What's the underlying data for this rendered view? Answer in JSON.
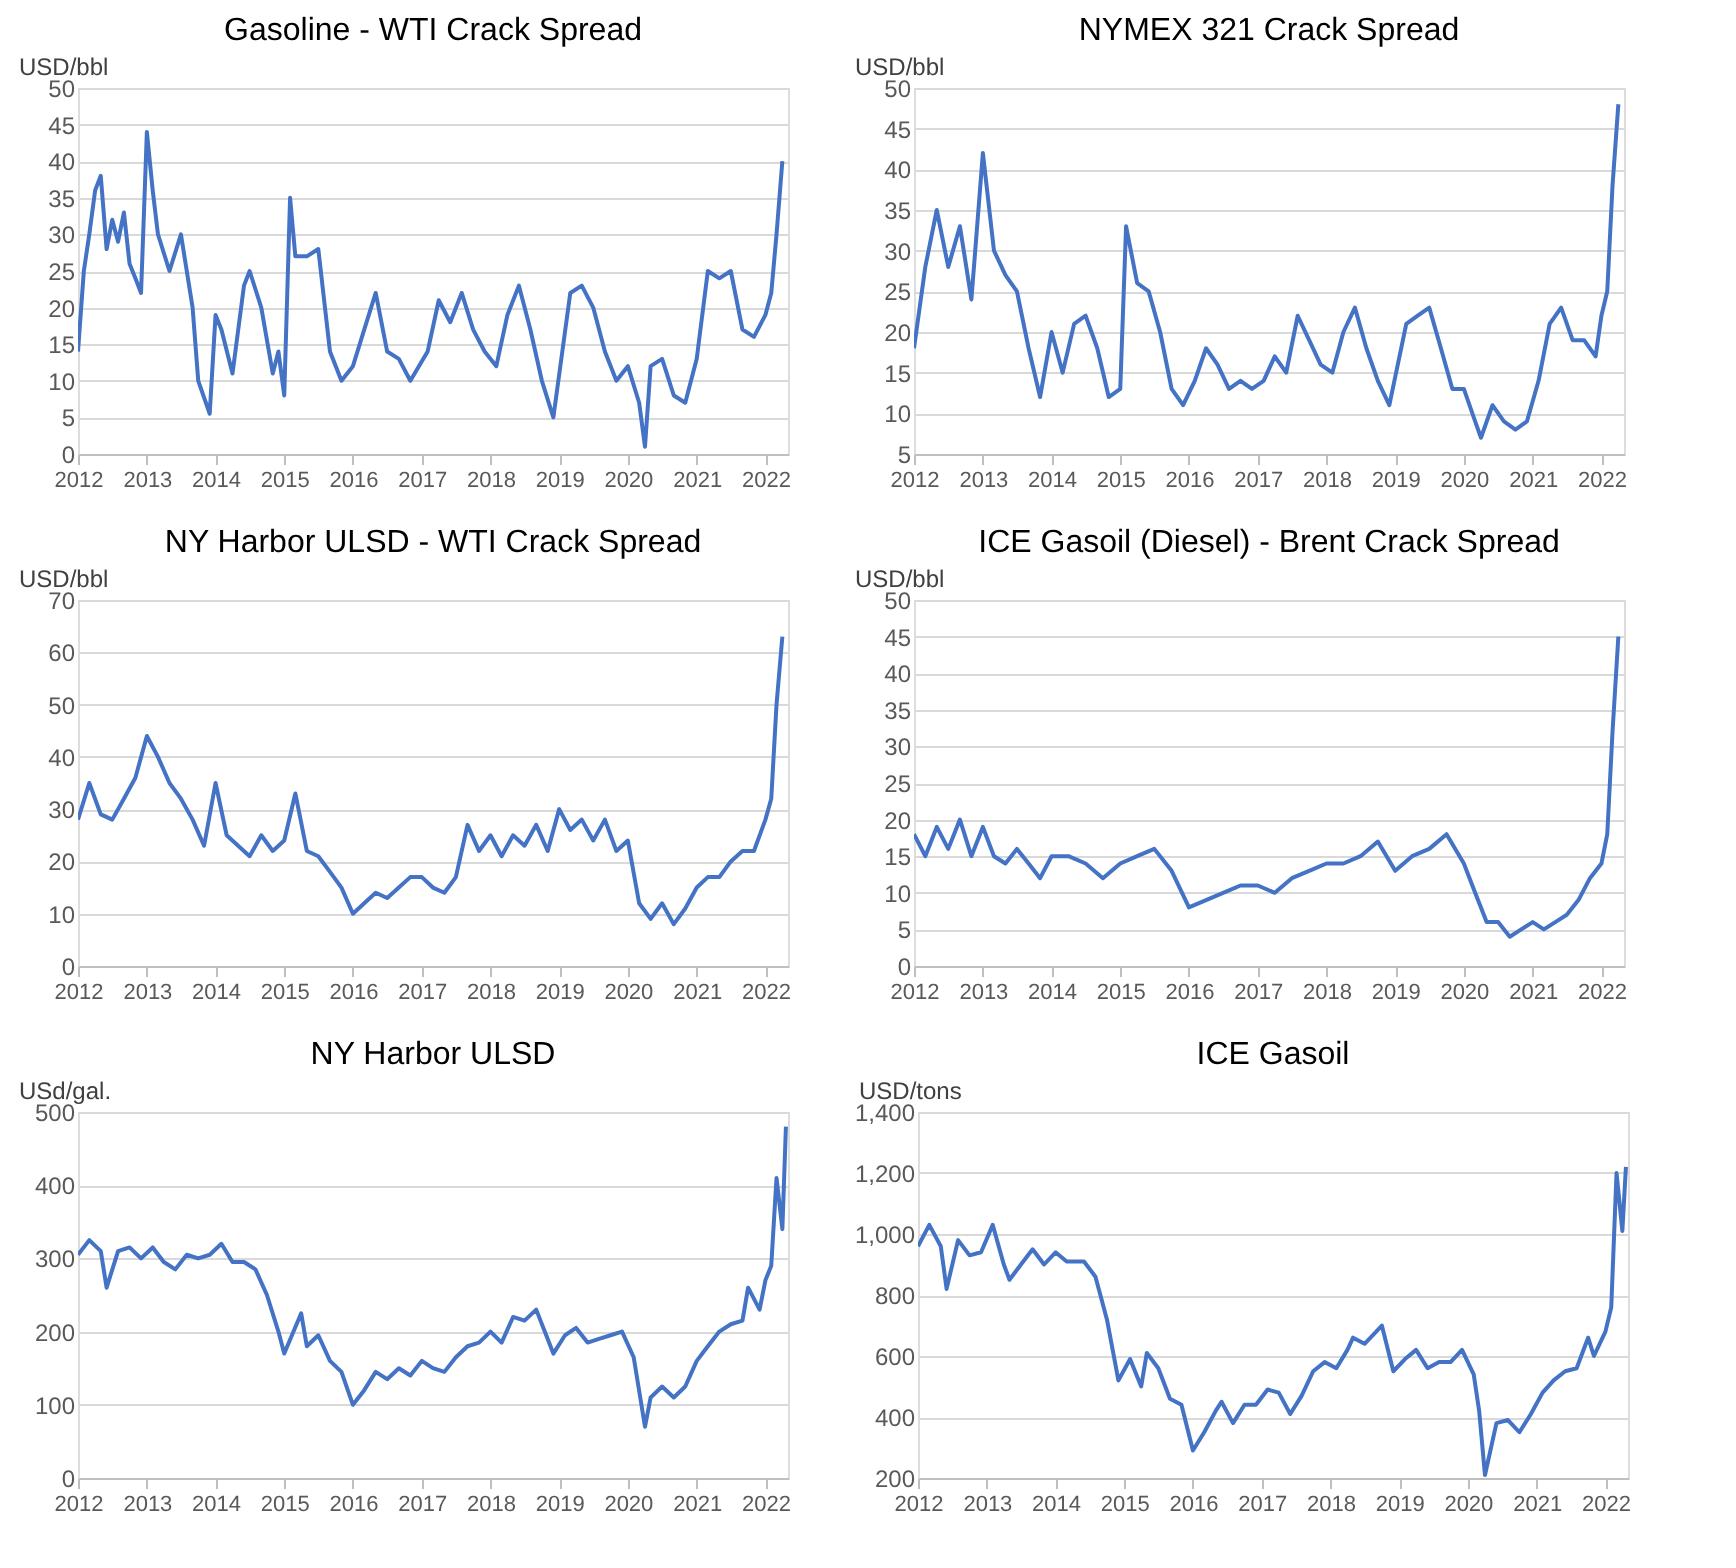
{
  "chart_data": [
    {
      "type": "line",
      "title": "Gasoline - WTI Crack Spread",
      "ylabel": "USD/bbl",
      "grid": "y",
      "xlim": [
        "2012-01-01",
        "2022-05-01"
      ],
      "xticks": [
        "2012",
        "2013",
        "2014",
        "2015",
        "2016",
        "2017",
        "2018",
        "2019",
        "2020",
        "2021",
        "2022"
      ],
      "ylim": [
        0,
        50
      ],
      "yticks": [
        0,
        5,
        10,
        15,
        20,
        25,
        30,
        35,
        40,
        45,
        50
      ],
      "x": [
        "2012-01",
        "2012-02",
        "2012-03",
        "2012-04",
        "2012-05",
        "2012-06",
        "2012-07",
        "2012-08",
        "2012-09",
        "2012-10",
        "2012-11",
        "2012-12",
        "2013-01",
        "2013-02",
        "2013-03",
        "2013-05",
        "2013-07",
        "2013-09",
        "2013-10",
        "2013-12",
        "2014-01",
        "2014-02",
        "2014-04",
        "2014-06",
        "2014-07",
        "2014-09",
        "2014-11",
        "2014-12",
        "2015-01",
        "2015-02",
        "2015-03",
        "2015-05",
        "2015-07",
        "2015-09",
        "2015-11",
        "2016-01",
        "2016-03",
        "2016-05",
        "2016-07",
        "2016-09",
        "2016-11",
        "2017-02",
        "2017-04",
        "2017-06",
        "2017-08",
        "2017-10",
        "2017-12",
        "2018-02",
        "2018-04",
        "2018-06",
        "2018-08",
        "2018-10",
        "2018-12",
        "2019-03",
        "2019-05",
        "2019-07",
        "2019-09",
        "2019-11",
        "2020-01",
        "2020-03",
        "2020-04",
        "2020-05",
        "2020-07",
        "2020-09",
        "2020-11",
        "2021-01",
        "2021-03",
        "2021-05",
        "2021-07",
        "2021-09",
        "2021-11",
        "2022-01",
        "2022-02",
        "2022-03",
        "2022-04"
      ],
      "series": [
        {
          "color": "#4472c4",
          "values": [
            14,
            25,
            30,
            36,
            38,
            28,
            32,
            29,
            33,
            26,
            24,
            22,
            44,
            36,
            30,
            25,
            30,
            20,
            10,
            5.5,
            19,
            17,
            11,
            23,
            25,
            20,
            11,
            14,
            8,
            35,
            27,
            27,
            28,
            14,
            10,
            12,
            17,
            22,
            14,
            13,
            10,
            14,
            21,
            18,
            22,
            17,
            14,
            12,
            19,
            23,
            17,
            10,
            5,
            22,
            23,
            20,
            14,
            10,
            12,
            7,
            1,
            12,
            13,
            8,
            7,
            13,
            25,
            24,
            25,
            17,
            16,
            19,
            22,
            30,
            40
          ]
        }
      ]
    },
    {
      "type": "line",
      "title": "NYMEX 321 Crack Spread",
      "ylabel": "USD/bbl",
      "grid": "y",
      "xlim": [
        "2012-01-01",
        "2022-05-01"
      ],
      "xticks": [
        "2012",
        "2013",
        "2014",
        "2015",
        "2016",
        "2017",
        "2018",
        "2019",
        "2020",
        "2021",
        "2022"
      ],
      "ylim": [
        5,
        50
      ],
      "yticks": [
        5,
        10,
        15,
        20,
        25,
        30,
        35,
        40,
        45,
        50
      ],
      "x": [
        "2012-01",
        "2012-03",
        "2012-05",
        "2012-07",
        "2012-09",
        "2012-11",
        "2013-01",
        "2013-03",
        "2013-05",
        "2013-07",
        "2013-09",
        "2013-11",
        "2014-01",
        "2014-03",
        "2014-05",
        "2014-07",
        "2014-09",
        "2014-11",
        "2015-01",
        "2015-02",
        "2015-04",
        "2015-06",
        "2015-08",
        "2015-10",
        "2015-12",
        "2016-02",
        "2016-04",
        "2016-06",
        "2016-08",
        "2016-10",
        "2016-12",
        "2017-02",
        "2017-04",
        "2017-06",
        "2017-08",
        "2017-10",
        "2017-12",
        "2018-02",
        "2018-04",
        "2018-06",
        "2018-08",
        "2018-10",
        "2018-12",
        "2019-03",
        "2019-05",
        "2019-07",
        "2019-09",
        "2019-11",
        "2020-01",
        "2020-03",
        "2020-04",
        "2020-06",
        "2020-08",
        "2020-10",
        "2020-12",
        "2021-02",
        "2021-04",
        "2021-06",
        "2021-08",
        "2021-10",
        "2021-12",
        "2022-01",
        "2022-02",
        "2022-03",
        "2022-04"
      ],
      "series": [
        {
          "color": "#4472c4",
          "values": [
            18,
            28,
            35,
            28,
            33,
            24,
            42,
            30,
            27,
            25,
            18,
            12,
            20,
            15,
            21,
            22,
            18,
            12,
            13,
            33,
            26,
            25,
            20,
            13,
            11,
            14,
            18,
            16,
            13,
            14,
            13,
            14,
            17,
            15,
            22,
            19,
            16,
            15,
            20,
            23,
            18,
            14,
            11,
            21,
            22,
            23,
            18,
            13,
            13,
            9,
            7,
            11,
            9,
            8,
            9,
            14,
            21,
            23,
            19,
            19,
            17,
            22,
            25,
            38,
            48
          ]
        }
      ]
    },
    {
      "type": "line",
      "title": "NY Harbor ULSD - WTI Crack Spread",
      "ylabel": "USD/bbl",
      "grid": "y",
      "xlim": [
        "2012-01-01",
        "2022-05-01"
      ],
      "xticks": [
        "2012",
        "2013",
        "2014",
        "2015",
        "2016",
        "2017",
        "2018",
        "2019",
        "2020",
        "2021",
        "2022"
      ],
      "ylim": [
        0,
        70
      ],
      "yticks": [
        0,
        10,
        20,
        30,
        40,
        50,
        60,
        70
      ],
      "x": [
        "2012-01",
        "2012-03",
        "2012-05",
        "2012-07",
        "2012-09",
        "2012-11",
        "2013-01",
        "2013-03",
        "2013-05",
        "2013-07",
        "2013-09",
        "2013-11",
        "2014-01",
        "2014-03",
        "2014-05",
        "2014-07",
        "2014-09",
        "2014-11",
        "2015-01",
        "2015-03",
        "2015-05",
        "2015-07",
        "2015-09",
        "2015-11",
        "2016-01",
        "2016-03",
        "2016-05",
        "2016-07",
        "2016-09",
        "2016-11",
        "2017-01",
        "2017-03",
        "2017-05",
        "2017-07",
        "2017-09",
        "2017-11",
        "2018-01",
        "2018-03",
        "2018-05",
        "2018-07",
        "2018-09",
        "2018-11",
        "2019-01",
        "2019-03",
        "2019-05",
        "2019-07",
        "2019-09",
        "2019-11",
        "2020-01",
        "2020-03",
        "2020-05",
        "2020-07",
        "2020-09",
        "2020-11",
        "2021-01",
        "2021-03",
        "2021-05",
        "2021-07",
        "2021-09",
        "2021-11",
        "2022-01",
        "2022-02",
        "2022-03",
        "2022-04"
      ],
      "series": [
        {
          "color": "#4472c4",
          "values": [
            28,
            35,
            29,
            28,
            32,
            36,
            44,
            40,
            35,
            32,
            28,
            23,
            35,
            25,
            23,
            21,
            25,
            22,
            24,
            33,
            22,
            21,
            18,
            15,
            10,
            12,
            14,
            13,
            15,
            17,
            17,
            15,
            14,
            17,
            27,
            22,
            25,
            21,
            25,
            23,
            27,
            22,
            30,
            26,
            28,
            24,
            28,
            22,
            24,
            12,
            9,
            12,
            8,
            11,
            15,
            17,
            17,
            20,
            22,
            22,
            28,
            32,
            50,
            63
          ]
        }
      ]
    },
    {
      "type": "line",
      "title": "ICE Gasoil (Diesel) - Brent Crack Spread",
      "ylabel": "USD/bbl",
      "grid": "y",
      "xlim": [
        "2012-01-01",
        "2022-05-01"
      ],
      "xticks": [
        "2012",
        "2013",
        "2014",
        "2015",
        "2016",
        "2017",
        "2018",
        "2019",
        "2020",
        "2021",
        "2022"
      ],
      "ylim": [
        0,
        50
      ],
      "yticks": [
        0,
        5,
        10,
        15,
        20,
        25,
        30,
        35,
        40,
        45,
        50
      ],
      "x": [
        "2012-01",
        "2012-03",
        "2012-05",
        "2012-07",
        "2012-09",
        "2012-11",
        "2013-01",
        "2013-03",
        "2013-05",
        "2013-07",
        "2013-09",
        "2013-11",
        "2014-01",
        "2014-04",
        "2014-07",
        "2014-10",
        "2015-01",
        "2015-04",
        "2015-07",
        "2015-10",
        "2016-01",
        "2016-04",
        "2016-07",
        "2016-10",
        "2017-01",
        "2017-04",
        "2017-07",
        "2017-10",
        "2018-01",
        "2018-04",
        "2018-07",
        "2018-10",
        "2019-01",
        "2019-04",
        "2019-07",
        "2019-10",
        "2020-01",
        "2020-03",
        "2020-05",
        "2020-07",
        "2020-09",
        "2020-11",
        "2021-01",
        "2021-03",
        "2021-05",
        "2021-07",
        "2021-09",
        "2021-11",
        "2022-01",
        "2022-02",
        "2022-03",
        "2022-04"
      ],
      "series": [
        {
          "color": "#4472c4",
          "values": [
            18,
            15,
            19,
            16,
            20,
            15,
            19,
            15,
            14,
            16,
            14,
            12,
            15,
            15,
            14,
            12,
            14,
            15,
            16,
            13,
            8,
            9,
            10,
            11,
            11,
            10,
            12,
            13,
            14,
            14,
            15,
            17,
            13,
            15,
            16,
            18,
            14,
            10,
            6,
            6,
            4,
            5,
            6,
            5,
            6,
            7,
            9,
            12,
            14,
            18,
            32,
            45
          ]
        }
      ]
    },
    {
      "type": "line",
      "title": "NY Harbor ULSD",
      "ylabel": "USd/gal.",
      "grid": "y",
      "xlim": [
        "2012-01-01",
        "2022-05-01"
      ],
      "xticks": [
        "2012",
        "2013",
        "2014",
        "2015",
        "2016",
        "2017",
        "2018",
        "2019",
        "2020",
        "2021",
        "2022"
      ],
      "ylim": [
        0,
        500
      ],
      "yticks": [
        0,
        100,
        200,
        300,
        400,
        500
      ],
      "x": [
        "2012-01",
        "2012-03",
        "2012-05",
        "2012-06",
        "2012-08",
        "2012-10",
        "2012-12",
        "2013-02",
        "2013-04",
        "2013-06",
        "2013-08",
        "2013-10",
        "2013-12",
        "2014-02",
        "2014-04",
        "2014-06",
        "2014-08",
        "2014-10",
        "2014-12",
        "2015-01",
        "2015-04",
        "2015-05",
        "2015-07",
        "2015-09",
        "2015-11",
        "2016-01",
        "2016-03",
        "2016-05",
        "2016-07",
        "2016-09",
        "2016-11",
        "2017-01",
        "2017-03",
        "2017-05",
        "2017-07",
        "2017-09",
        "2017-11",
        "2018-01",
        "2018-03",
        "2018-05",
        "2018-07",
        "2018-09",
        "2018-11",
        "2018-12",
        "2019-02",
        "2019-04",
        "2019-06",
        "2019-08",
        "2019-10",
        "2019-12",
        "2020-02",
        "2020-04",
        "2020-05",
        "2020-07",
        "2020-09",
        "2020-11",
        "2021-01",
        "2021-03",
        "2021-05",
        "2021-07",
        "2021-09",
        "2021-10",
        "2021-12",
        "2022-01",
        "2022-02",
        "2022-03",
        "2022-04",
        "2022-04-20"
      ],
      "series": [
        {
          "color": "#4472c4",
          "values": [
            305,
            325,
            310,
            260,
            310,
            315,
            300,
            315,
            295,
            285,
            305,
            300,
            305,
            320,
            295,
            295,
            285,
            250,
            200,
            170,
            225,
            180,
            195,
            160,
            145,
            100,
            120,
            145,
            135,
            150,
            140,
            160,
            150,
            145,
            165,
            180,
            185,
            200,
            185,
            220,
            215,
            230,
            190,
            170,
            195,
            205,
            185,
            190,
            195,
            200,
            165,
            70,
            110,
            125,
            110,
            125,
            160,
            180,
            200,
            210,
            215,
            260,
            230,
            270,
            290,
            410,
            340,
            480
          ]
        }
      ]
    },
    {
      "type": "line",
      "title": "ICE Gasoil",
      "ylabel": "USD/tons",
      "grid": "y",
      "xlim": [
        "2012-01-01",
        "2022-05-01"
      ],
      "xticks": [
        "2012",
        "2013",
        "2014",
        "2015",
        "2016",
        "2017",
        "2018",
        "2019",
        "2020",
        "2021",
        "2022"
      ],
      "ylim": [
        200,
        1400
      ],
      "yticks": [
        200,
        400,
        600,
        800,
        {
          "value": 1000,
          "label": "1,000"
        },
        {
          "value": 1200,
          "label": "1,200"
        },
        {
          "value": 1400,
          "label": "1,400"
        }
      ],
      "x": [
        "2012-01",
        "2012-03",
        "2012-05",
        "2012-06",
        "2012-08",
        "2012-10",
        "2012-12",
        "2013-02",
        "2013-04",
        "2013-05",
        "2013-07",
        "2013-09",
        "2013-11",
        "2014-01",
        "2014-03",
        "2014-06",
        "2014-08",
        "2014-10",
        "2014-12",
        "2015-02",
        "2015-04",
        "2015-05",
        "2015-07",
        "2015-09",
        "2015-11",
        "2016-01",
        "2016-03",
        "2016-05",
        "2016-06",
        "2016-08",
        "2016-10",
        "2016-12",
        "2017-02",
        "2017-04",
        "2017-06",
        "2017-08",
        "2017-10",
        "2017-12",
        "2018-02",
        "2018-04",
        "2018-05",
        "2018-07",
        "2018-09",
        "2018-10",
        "2018-12",
        "2019-02",
        "2019-04",
        "2019-06",
        "2019-08",
        "2019-10",
        "2019-12",
        "2020-02",
        "2020-03",
        "2020-04",
        "2020-06",
        "2020-08",
        "2020-10",
        "2020-12",
        "2021-02",
        "2021-04",
        "2021-06",
        "2021-08",
        "2021-10",
        "2021-11",
        "2022-01",
        "2022-02",
        "2022-03",
        "2022-04",
        "2022-04-20"
      ],
      "series": [
        {
          "color": "#4472c4",
          "values": [
            960,
            1030,
            960,
            820,
            980,
            930,
            940,
            1030,
            900,
            850,
            900,
            950,
            900,
            940,
            910,
            910,
            860,
            720,
            520,
            590,
            500,
            610,
            560,
            460,
            440,
            290,
            350,
            420,
            450,
            380,
            440,
            440,
            490,
            480,
            410,
            470,
            550,
            580,
            560,
            620,
            660,
            640,
            680,
            700,
            550,
            590,
            620,
            560,
            580,
            580,
            620,
            540,
            420,
            210,
            380,
            390,
            350,
            410,
            480,
            520,
            550,
            560,
            660,
            600,
            680,
            760,
            1200,
            1010,
            1220
          ]
        }
      ]
    }
  ]
}
